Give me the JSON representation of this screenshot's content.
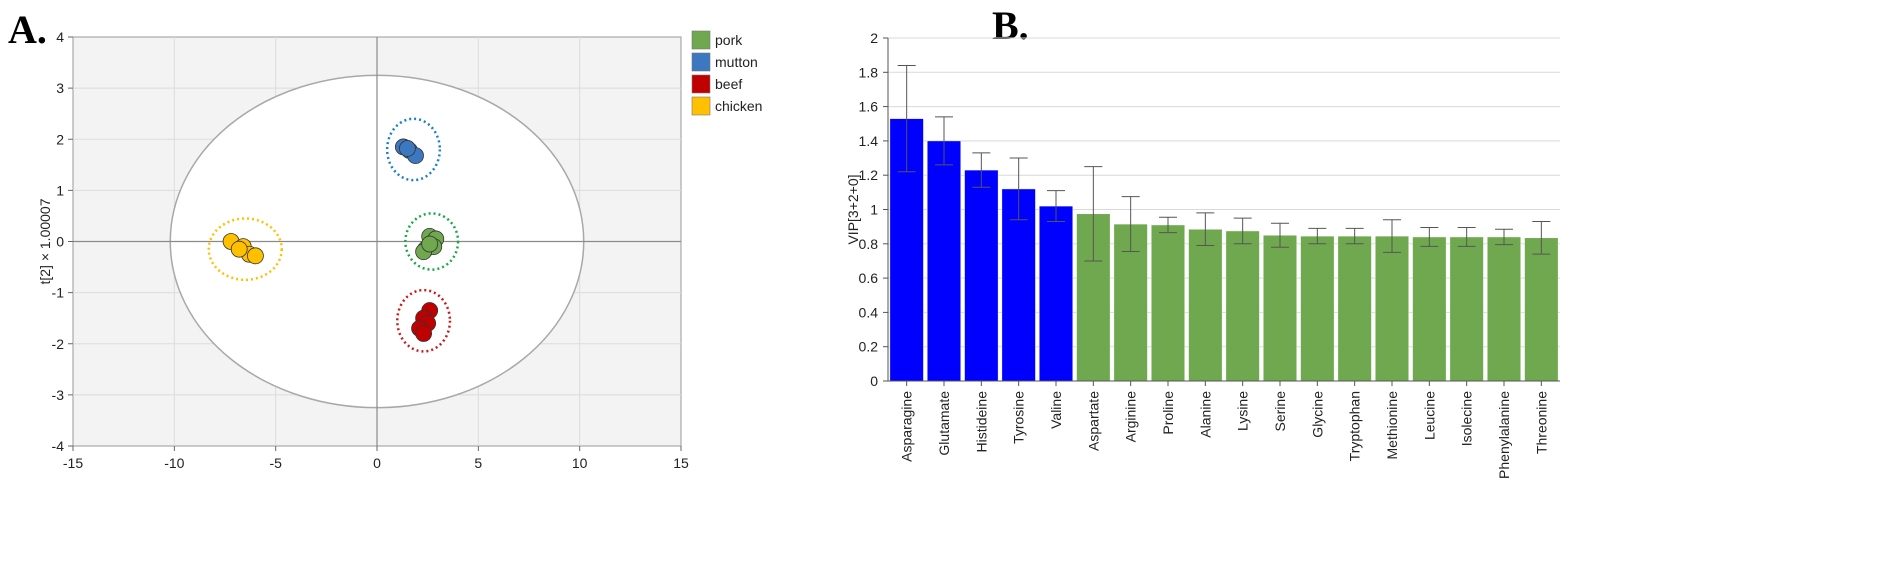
{
  "panel_labels": {
    "a": "A.",
    "b": "B."
  },
  "chart_data": [
    {
      "type": "scatter",
      "panel": "A.",
      "title": "",
      "xlabel": "",
      "ylabel": "t[2] × 1.00007",
      "xlim": [
        -15,
        15
      ],
      "ylim": [
        -4,
        4
      ],
      "xticks": [
        -15,
        -10,
        -5,
        0,
        5,
        10,
        15
      ],
      "yticks": [
        -4,
        -3,
        -2,
        -1,
        0,
        1,
        2,
        3,
        4
      ],
      "legend_position": "top-right outside",
      "ellipse": {
        "cx": 0,
        "cy": 0,
        "rx": 10.2,
        "ry": 3.25
      },
      "series": [
        {
          "name": "pork",
          "color": "#70a84f",
          "points": [
            [
              2.6,
              0.1
            ],
            [
              2.9,
              0.05
            ],
            [
              2.4,
              -0.15
            ],
            [
              2.8,
              -0.1
            ],
            [
              2.3,
              -0.2
            ],
            [
              2.6,
              -0.05
            ]
          ],
          "group_circle": {
            "cx": 2.7,
            "cy": 0,
            "rx": 1.3,
            "ry": 0.55,
            "color": "#1aa84a"
          }
        },
        {
          "name": "mutton",
          "color": "#3b78c0",
          "points": [
            [
              1.3,
              1.85
            ],
            [
              1.6,
              1.78
            ],
            [
              1.9,
              1.68
            ],
            [
              1.5,
              1.82
            ]
          ],
          "group_circle": {
            "cx": 1.8,
            "cy": 1.8,
            "rx": 1.3,
            "ry": 0.6,
            "color": "#1a7fd0"
          }
        },
        {
          "name": "beef",
          "color": "#c00000",
          "points": [
            [
              2.6,
              -1.35
            ],
            [
              2.3,
              -1.5
            ],
            [
              2.5,
              -1.6
            ],
            [
              2.1,
              -1.7
            ],
            [
              2.3,
              -1.8
            ]
          ],
          "group_circle": {
            "cx": 2.3,
            "cy": -1.55,
            "rx": 1.3,
            "ry": 0.6,
            "color": "#cc1a1a"
          }
        },
        {
          "name": "chicken",
          "color": "#ffc000",
          "points": [
            [
              -7.2,
              0.0
            ],
            [
              -6.6,
              -0.1
            ],
            [
              -6.3,
              -0.25
            ],
            [
              -6.0,
              -0.28
            ],
            [
              -6.8,
              -0.15
            ]
          ],
          "group_circle": {
            "cx": -6.5,
            "cy": -0.15,
            "rx": 1.8,
            "ry": 0.6,
            "color": "#ffc000"
          }
        }
      ]
    },
    {
      "type": "bar",
      "panel": "B.",
      "title": "",
      "xlabel": "",
      "ylabel": "VIP[3+2+0]",
      "ylim": [
        0,
        2
      ],
      "yticks": [
        0,
        0.2,
        0.4,
        0.6,
        0.8,
        1,
        1.2,
        1.4,
        1.6,
        1.8,
        2
      ],
      "categories": [
        "Asparagine",
        "Glutamate",
        "Histideine",
        "Tyrosine",
        "Valine",
        "Aspartate",
        "Arginine",
        "Proline",
        "Alanine",
        "Lysine",
        "Serine",
        "Glycine",
        "Tryptophan",
        "Methionine",
        "Leucine",
        "Isolecine",
        "Phenylalanine",
        "Threonine"
      ],
      "values": [
        1.53,
        1.4,
        1.23,
        1.12,
        1.02,
        0.975,
        0.915,
        0.91,
        0.885,
        0.875,
        0.85,
        0.845,
        0.845,
        0.845,
        0.84,
        0.84,
        0.84,
        0.835
      ],
      "error": [
        0.31,
        0.14,
        0.1,
        0.18,
        0.09,
        0.275,
        0.16,
        0.045,
        0.095,
        0.075,
        0.07,
        0.045,
        0.045,
        0.095,
        0.055,
        0.055,
        0.045,
        0.095
      ],
      "bar_colors": [
        "#0000ff",
        "#0000ff",
        "#0000ff",
        "#0000ff",
        "#0000ff",
        "#70a84f",
        "#70a84f",
        "#70a84f",
        "#70a84f",
        "#70a84f",
        "#70a84f",
        "#70a84f",
        "#70a84f",
        "#70a84f",
        "#70a84f",
        "#70a84f",
        "#70a84f",
        "#70a84f"
      ],
      "grid": true
    }
  ]
}
